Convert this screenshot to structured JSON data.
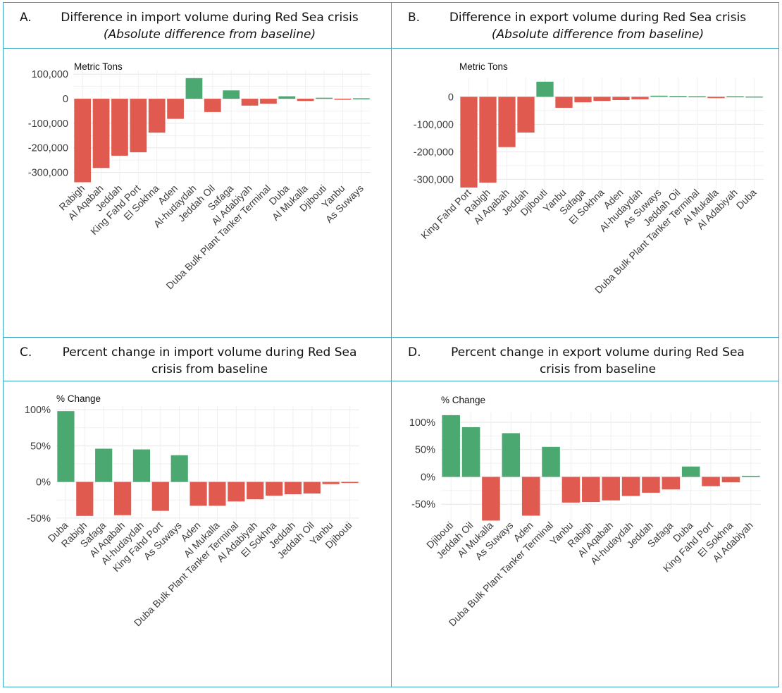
{
  "panels": {
    "a": {
      "letter": "A.",
      "title": "Difference in import volume during Red Sea crisis",
      "subtitle": "(Absolute difference from baseline)"
    },
    "b": {
      "letter": "B.",
      "title": "Difference in export volume during Red Sea crisis",
      "subtitle": "(Absolute difference from baseline)"
    },
    "c": {
      "letter": "C.",
      "title": "Percent change in import volume during Red Sea",
      "subtitle": "crisis from baseline"
    },
    "d": {
      "letter": "D.",
      "title": "Percent change in export volume during Red Sea",
      "subtitle": "crisis from baseline"
    }
  },
  "colors": {
    "positive": "#4aa870",
    "negative": "#e05a4f",
    "grid": "#e6e6e6",
    "border": "#3aa6c8"
  },
  "chart_data": [
    {
      "id": "a",
      "type": "bar",
      "ylabel": "Metric Tons",
      "ylim": [
        -350000,
        115000
      ],
      "yticks": [
        100000,
        0,
        -100000,
        -200000,
        -300000
      ],
      "ytick_labels": [
        "100,000",
        "0",
        "-100,000",
        "-200,000",
        "-300,000"
      ],
      "categories": [
        "Rabigh",
        "Al Aqabah",
        "Jeddah",
        "King Fahd Port",
        "El Sokhna",
        "Aden",
        "Al-hudaydah",
        "Jeddah Oil",
        "Safaga",
        "Al Adabiyah",
        "Duba Bulk Plant Tanker Terminal",
        "Duba",
        "Al Mukalla",
        "Djibouti",
        "Yanbu",
        "As Suways"
      ],
      "values": [
        -340000,
        -282000,
        -232000,
        -218000,
        -138000,
        -82000,
        84000,
        -54000,
        34000,
        -28000,
        -20000,
        10000,
        -9000,
        4000,
        -3000,
        2000
      ]
    },
    {
      "id": "b",
      "type": "bar",
      "ylabel": "Metric Tons",
      "ylim": [
        -335000,
        70000
      ],
      "yticks": [
        0,
        -100000,
        -200000,
        -300000
      ],
      "ytick_labels": [
        "0",
        "-100,000",
        "-200,000",
        "-300,000"
      ],
      "categories": [
        "King Fahd Port",
        "Rabigh",
        "Al Aqabah",
        "Jeddah",
        "Djibouti",
        "Yanbu",
        "Safaga",
        "El Sokhna",
        "Aden",
        "Al-hudaydah",
        "As Suways",
        "Jeddah Oil",
        "Duba Bulk Plant Tanker Terminal",
        "Al Mukalla",
        "Al Adabiyah",
        "Duba"
      ],
      "values": [
        -330000,
        -312000,
        -183000,
        -130000,
        55000,
        -40000,
        -20000,
        -15000,
        -12000,
        -9000,
        4000,
        3000,
        2000,
        -5000,
        2000,
        1000
      ]
    },
    {
      "id": "c",
      "type": "bar",
      "ylabel": "% Change",
      "ylim": [
        -55,
        105
      ],
      "yticks": [
        100,
        50,
        0,
        -50
      ],
      "ytick_labels": [
        "100%",
        "50%",
        "0%",
        "-50%"
      ],
      "categories": [
        "Duba",
        "Rabigh",
        "Safaga",
        "Al Aqabah",
        "Al-hudaydah",
        "King Fahd Port",
        "As Suways",
        "Aden",
        "Al Mukalla",
        "Duba Bulk Plant Tanker Terminal",
        "Al Adabiyah",
        "El Sokhna",
        "Jeddah",
        "Jeddah Oil",
        "Yanbu",
        "Djibouti"
      ],
      "values": [
        98,
        -47,
        46,
        -46,
        45,
        -40,
        37,
        -33,
        -33,
        -27,
        -24,
        -19,
        -17,
        -16,
        -3,
        -1
      ]
    },
    {
      "id": "d",
      "type": "bar",
      "ylabel": "% Change",
      "ylim": [
        -82,
        118
      ],
      "yticks": [
        100,
        50,
        0,
        -50
      ],
      "ytick_labels": [
        "100%",
        "50%",
        "0%",
        "-50%"
      ],
      "categories": [
        "Djibouti",
        "Jeddah Oil",
        "Al Mukalla",
        "As Suways",
        "Aden",
        "Duba Bulk Plant Tanker Terminal",
        "Yanbu",
        "Rabigh",
        "Al Aqabah",
        "Al-hudaydah",
        "Jeddah",
        "Safaga",
        "Duba",
        "King Fahd Port",
        "El Sokhna",
        "Al Adabiyah"
      ],
      "values": [
        113,
        91,
        -80,
        80,
        -71,
        55,
        -47,
        -46,
        -43,
        -35,
        -29,
        -23,
        19,
        -17,
        -10,
        2
      ]
    }
  ]
}
